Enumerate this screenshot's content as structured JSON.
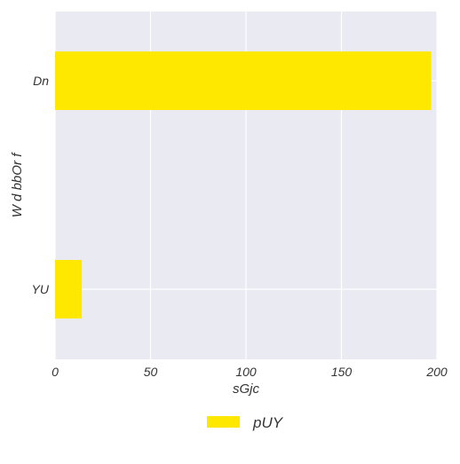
{
  "chart_data": {
    "type": "bar",
    "orientation": "horizontal",
    "categories": [
      "Dn",
      "YU"
    ],
    "series": [
      {
        "name": "pUY",
        "values": [
          197,
          14
        ],
        "color": "#ffe800"
      }
    ],
    "xlabel": "sGjc",
    "ylabel": "W d bbOr f",
    "xlim": [
      0,
      200
    ],
    "xticks": [
      "0",
      "50",
      "100",
      "150",
      "200"
    ],
    "grid": true,
    "legend_position": "bottom-center",
    "background_color": "#eaeaf2",
    "grid_color": "#ffffff"
  }
}
